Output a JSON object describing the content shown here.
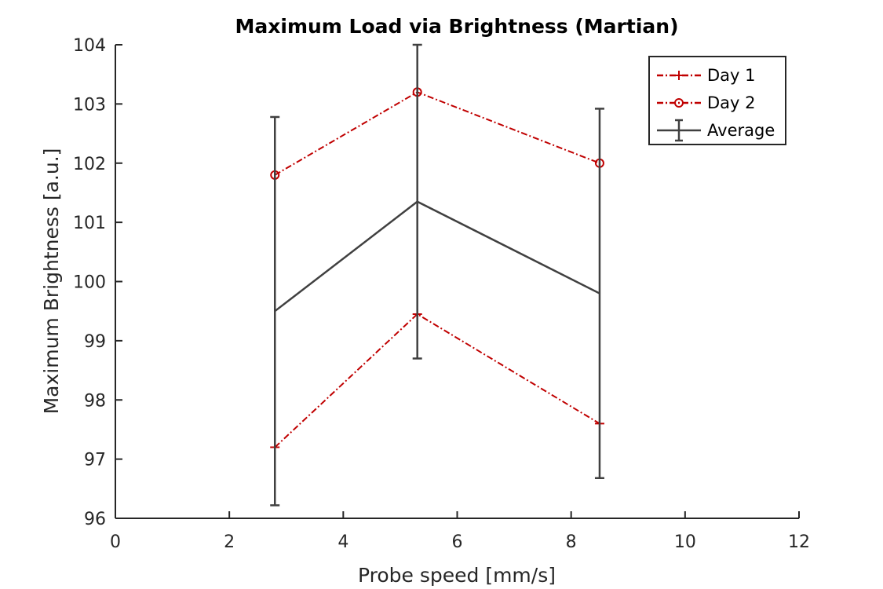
{
  "chart_data": {
    "type": "line",
    "title": "Maximum Load via Brightness (Martian)",
    "xlabel": "Probe speed [mm/s]",
    "ylabel": "Maximum Brightness [a.u.]",
    "xlim": [
      0,
      12
    ],
    "ylim": [
      96,
      104
    ],
    "xticks": [
      0,
      2,
      4,
      6,
      8,
      10,
      12
    ],
    "yticks": [
      96,
      97,
      98,
      99,
      100,
      101,
      102,
      103,
      104
    ],
    "grid": false,
    "legend_position": "top-right",
    "x": [
      2.8,
      5.3,
      8.5
    ],
    "series": [
      {
        "name": "Day 1",
        "values": [
          97.2,
          99.45,
          97.6
        ],
        "color": "#c00000",
        "style": "dash-dot",
        "marker": "plus"
      },
      {
        "name": "Day 2",
        "values": [
          101.8,
          103.2,
          102.0
        ],
        "color": "#c00000",
        "style": "dash-dot",
        "marker": "circle"
      },
      {
        "name": "Average",
        "values": [
          99.5,
          101.35,
          99.8
        ],
        "color": "#404040",
        "style": "solid",
        "marker": "none",
        "error": [
          3.28,
          2.65,
          3.12
        ]
      }
    ]
  }
}
